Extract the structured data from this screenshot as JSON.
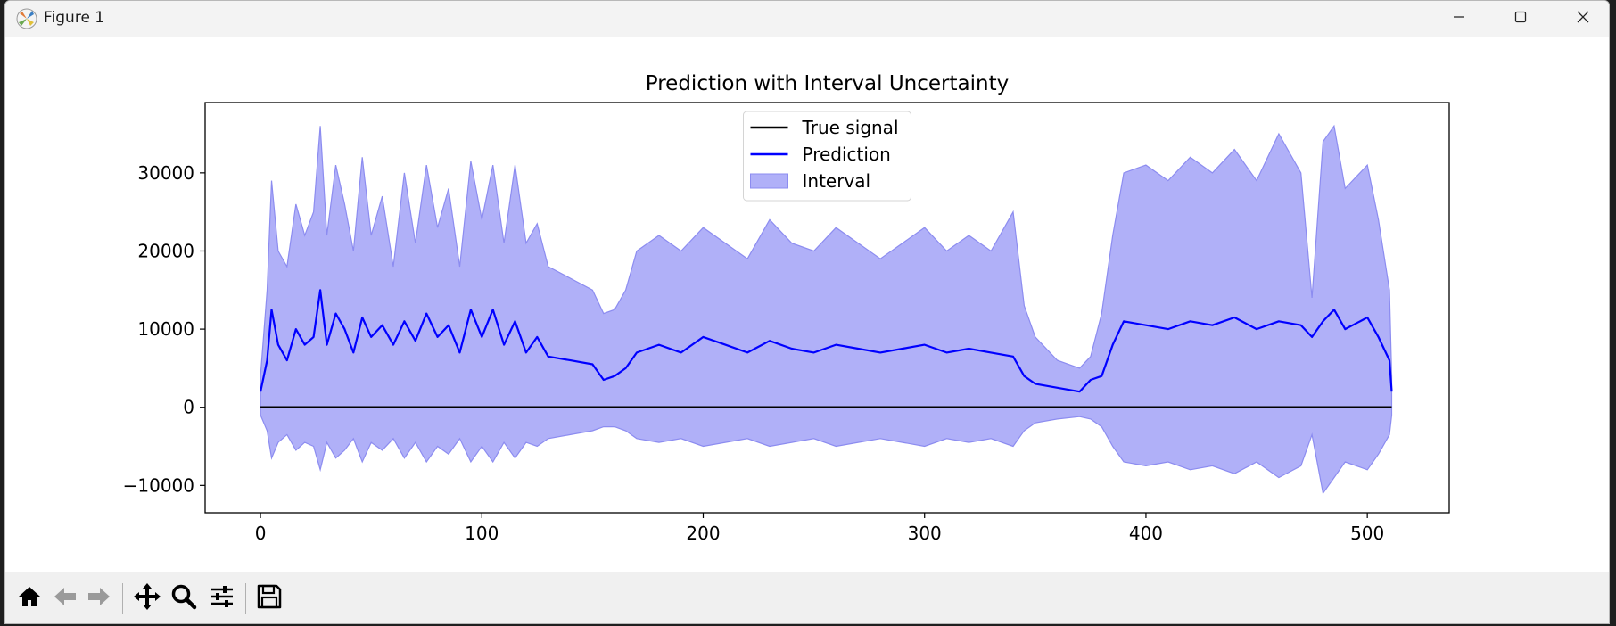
{
  "window": {
    "title": "Figure 1",
    "icon": "matplotlib-icon",
    "controls": [
      "minimize-icon",
      "maximize-icon",
      "close-icon"
    ]
  },
  "toolbar": {
    "buttons": [
      "home-icon",
      "back-icon",
      "forward-icon",
      "pan-icon",
      "zoom-icon",
      "configure-subplots-icon",
      "save-icon"
    ]
  },
  "chart_data": {
    "type": "line",
    "title": "Prediction with Interval Uncertainty",
    "xlabel": "",
    "ylabel": "",
    "xlim": [
      -25,
      537
    ],
    "ylim": [
      -13500,
      39000
    ],
    "xticks": [
      0,
      100,
      200,
      300,
      400,
      500
    ],
    "xtick_labels": [
      "0",
      "100",
      "200",
      "300",
      "400",
      "500"
    ],
    "yticks": [
      -10000,
      0,
      10000,
      20000,
      30000
    ],
    "ytick_labels": [
      "−10000",
      "0",
      "10000",
      "20000",
      "30000"
    ],
    "grid": false,
    "legend": "upper center",
    "colors": {
      "true_signal": "#000000",
      "prediction": "#0000ff",
      "interval_fill": "#b0b0f8",
      "interval_edge": "#8c8cf0"
    },
    "series": [
      {
        "name": "True signal",
        "kind": "line",
        "x_range": [
          0,
          511
        ],
        "values": [
          0,
          0
        ]
      },
      {
        "name": "Prediction",
        "kind": "line",
        "x": [
          0,
          3,
          5,
          8,
          12,
          16,
          20,
          24,
          27,
          30,
          34,
          38,
          42,
          46,
          50,
          55,
          60,
          65,
          70,
          75,
          80,
          85,
          90,
          95,
          100,
          105,
          110,
          115,
          120,
          125,
          130,
          140,
          150,
          155,
          160,
          165,
          170,
          180,
          190,
          200,
          210,
          220,
          230,
          240,
          250,
          260,
          270,
          280,
          290,
          300,
          310,
          320,
          330,
          340,
          345,
          350,
          360,
          370,
          375,
          380,
          385,
          390,
          400,
          410,
          420,
          430,
          440,
          450,
          460,
          470,
          475,
          480,
          485,
          490,
          500,
          505,
          510,
          511
        ],
        "values": [
          2000,
          6000,
          12500,
          8000,
          6000,
          10000,
          8000,
          9000,
          15000,
          8000,
          12000,
          10000,
          7000,
          11500,
          9000,
          10500,
          8000,
          11000,
          8500,
          12000,
          9000,
          10500,
          7000,
          12500,
          9000,
          12500,
          8000,
          11000,
          7000,
          9000,
          6500,
          6000,
          5500,
          3500,
          4000,
          5000,
          7000,
          8000,
          7000,
          9000,
          8000,
          7000,
          8500,
          7500,
          7000,
          8000,
          7500,
          7000,
          7500,
          8000,
          7000,
          7500,
          7000,
          6500,
          4000,
          3000,
          2500,
          2000,
          3500,
          4000,
          8000,
          11000,
          10500,
          10000,
          11000,
          10500,
          11500,
          10000,
          11000,
          10500,
          9000,
          11000,
          12500,
          10000,
          11500,
          9000,
          6000,
          2000
        ]
      },
      {
        "name": "Interval",
        "kind": "band",
        "x": [
          0,
          3,
          5,
          8,
          12,
          16,
          20,
          24,
          27,
          30,
          34,
          38,
          42,
          46,
          50,
          55,
          60,
          65,
          70,
          75,
          80,
          85,
          90,
          95,
          100,
          105,
          110,
          115,
          120,
          125,
          130,
          140,
          150,
          155,
          160,
          165,
          170,
          180,
          190,
          200,
          210,
          220,
          230,
          240,
          250,
          260,
          270,
          280,
          290,
          300,
          310,
          320,
          330,
          340,
          345,
          350,
          360,
          370,
          375,
          380,
          385,
          390,
          400,
          410,
          420,
          430,
          440,
          450,
          460,
          470,
          475,
          480,
          485,
          490,
          500,
          505,
          510,
          511
        ],
        "upper": [
          4000,
          15000,
          29000,
          20000,
          18000,
          26000,
          22000,
          25000,
          36000,
          22000,
          31000,
          26000,
          20000,
          32000,
          22000,
          27000,
          18000,
          30000,
          21000,
          31000,
          23000,
          28000,
          18000,
          31500,
          24000,
          31000,
          21000,
          31000,
          21000,
          23500,
          18000,
          16500,
          15000,
          12000,
          12500,
          15000,
          20000,
          22000,
          20000,
          23000,
          21000,
          19000,
          24000,
          21000,
          20000,
          23000,
          21000,
          19000,
          21000,
          23000,
          20000,
          22000,
          20000,
          25000,
          13000,
          9000,
          6000,
          5000,
          6500,
          12000,
          22000,
          30000,
          31000,
          29000,
          32000,
          30000,
          33000,
          29000,
          35000,
          30000,
          14000,
          34000,
          36000,
          28000,
          31000,
          24000,
          15000,
          4000
        ],
        "lower": [
          -1000,
          -3000,
          -6500,
          -4500,
          -3500,
          -5500,
          -4500,
          -5000,
          -8000,
          -4500,
          -6500,
          -5500,
          -4000,
          -7000,
          -4500,
          -5500,
          -4000,
          -6500,
          -4500,
          -7000,
          -5000,
          -6000,
          -4000,
          -7000,
          -5000,
          -7000,
          -4500,
          -6500,
          -4500,
          -5000,
          -4000,
          -3500,
          -3000,
          -2500,
          -2500,
          -3000,
          -4000,
          -4500,
          -4000,
          -5000,
          -4500,
          -4000,
          -5000,
          -4500,
          -4000,
          -5000,
          -4500,
          -4000,
          -4500,
          -5000,
          -4000,
          -4500,
          -4000,
          -5000,
          -3000,
          -2000,
          -1500,
          -1200,
          -1500,
          -2500,
          -5000,
          -7000,
          -7500,
          -7000,
          -8000,
          -7500,
          -8500,
          -7000,
          -9000,
          -7500,
          -3500,
          -11000,
          -9000,
          -7000,
          -8000,
          -6000,
          -3500,
          -1000
        ]
      }
    ]
  }
}
